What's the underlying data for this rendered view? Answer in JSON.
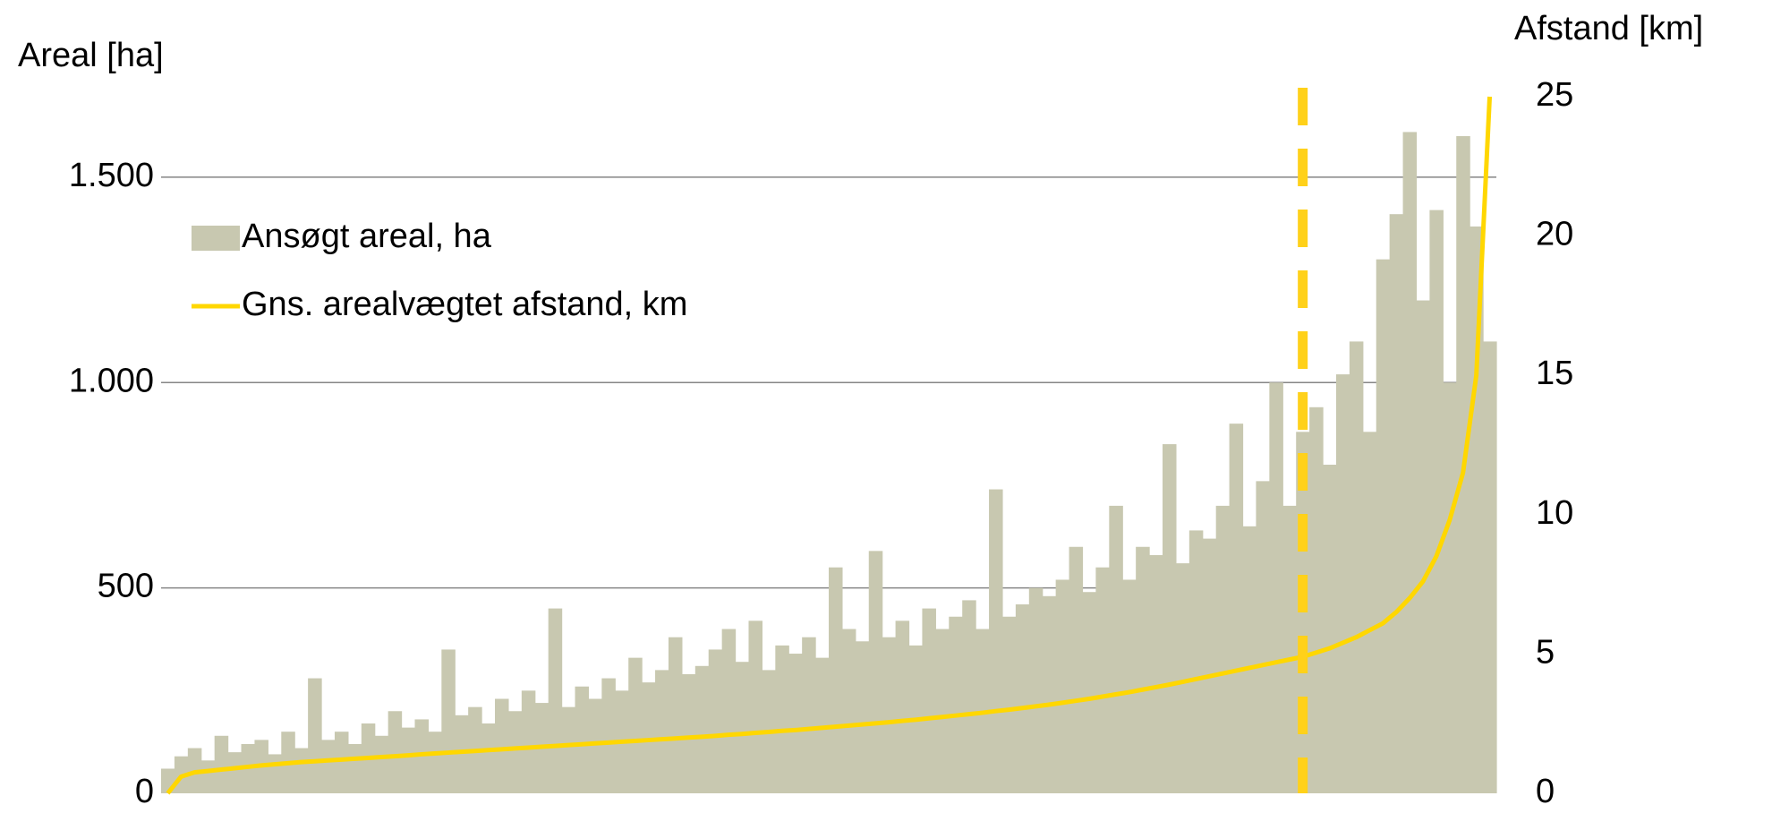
{
  "chart_data": {
    "type": "bar_line",
    "y_label": "Areal [ha]",
    "y2_label": "Afstand [km]",
    "ylim": [
      0,
      1696
    ],
    "yticks": [
      0,
      500,
      {
        "value": 1000,
        "label": "1.000"
      },
      {
        "value": 1500,
        "label": "1.500"
      }
    ],
    "y2lim": [
      0,
      25
    ],
    "y2ticks": [
      0,
      5,
      10,
      15,
      20,
      25
    ],
    "grid": true,
    "legend": "upper left",
    "reference_line": {
      "x": 85,
      "color": "#ffd11a",
      "style": "dashed"
    },
    "series": [
      {
        "name": "Ansøgt areal, ha",
        "type": "bar",
        "color": "#c8c8b0",
        "values": [
          60,
          90,
          110,
          80,
          140,
          100,
          120,
          130,
          95,
          150,
          110,
          280,
          130,
          150,
          120,
          170,
          140,
          200,
          160,
          180,
          150,
          350,
          190,
          210,
          170,
          230,
          200,
          250,
          220,
          450,
          210,
          260,
          230,
          280,
          250,
          330,
          270,
          300,
          380,
          290,
          310,
          350,
          400,
          320,
          420,
          300,
          360,
          340,
          380,
          330,
          550,
          400,
          370,
          590,
          380,
          420,
          360,
          450,
          400,
          430,
          470,
          400,
          740,
          430,
          460,
          500,
          480,
          520,
          600,
          490,
          550,
          700,
          520,
          600,
          580,
          850,
          560,
          640,
          620,
          700,
          900,
          650,
          760,
          1000,
          700,
          880,
          940,
          800,
          1020,
          1100,
          880,
          1300,
          1410,
          1610,
          1200,
          1420,
          1000,
          1600,
          1380,
          1100
        ]
      },
      {
        "name": "Gns. arealvægtet afstand, km",
        "type": "line",
        "axis": "y2",
        "color": "#ffd700",
        "values": [
          0,
          0.6,
          0.75,
          0.8,
          0.85,
          0.9,
          0.95,
          1.0,
          1.04,
          1.08,
          1.12,
          1.15,
          1.18,
          1.21,
          1.24,
          1.27,
          1.3,
          1.33,
          1.36,
          1.4,
          1.43,
          1.46,
          1.49,
          1.52,
          1.55,
          1.58,
          1.61,
          1.64,
          1.67,
          1.7,
          1.73,
          1.76,
          1.79,
          1.82,
          1.85,
          1.88,
          1.91,
          1.94,
          1.97,
          2.0,
          2.03,
          2.06,
          2.1,
          2.13,
          2.17,
          2.2,
          2.24,
          2.27,
          2.31,
          2.35,
          2.39,
          2.43,
          2.47,
          2.51,
          2.55,
          2.6,
          2.64,
          2.69,
          2.74,
          2.79,
          2.84,
          2.89,
          2.95,
          3.0,
          3.06,
          3.12,
          3.18,
          3.25,
          3.32,
          3.39,
          3.47,
          3.55,
          3.63,
          3.72,
          3.81,
          3.9,
          4.0,
          4.1,
          4.2,
          4.3,
          4.4,
          4.5,
          4.6,
          4.7,
          4.8,
          4.9,
          5.05,
          5.2,
          5.4,
          5.6,
          5.85,
          6.1,
          6.5,
          7.0,
          7.6,
          8.5,
          9.8,
          11.5,
          15,
          25
        ]
      }
    ]
  }
}
